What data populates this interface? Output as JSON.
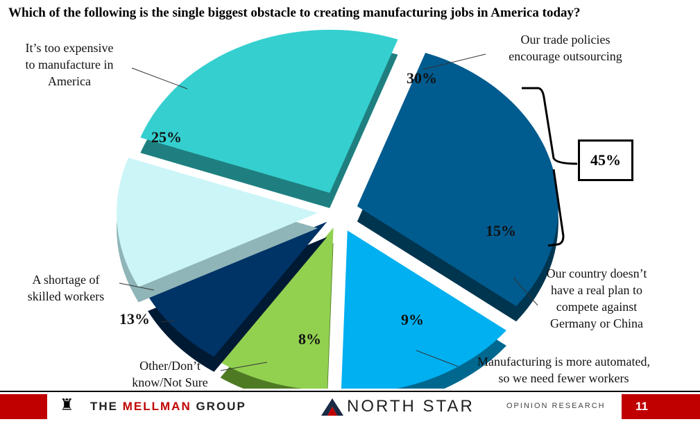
{
  "title": "Which of the following is the single biggest obstacle to creating manufacturing jobs in America today?",
  "chart_data": {
    "type": "pie",
    "title": "Which of the following is the single biggest obstacle to creating manufacturing jobs in America today?",
    "slices": [
      {
        "label": "Our trade policies encourage outsourcing",
        "value": 30,
        "value_label": "30%",
        "color": "#005b8f",
        "side": "#00354f"
      },
      {
        "label": "Our country doesn't have a real plan to compete against Germany or China",
        "value": 15,
        "value_label": "15%",
        "color": "#00b0f0",
        "side": "#00688f"
      },
      {
        "label": "Manufacturing is more automated, so we need fewer workers",
        "value": 9,
        "value_label": "9%",
        "color": "#92d050",
        "side": "#4f7a24"
      },
      {
        "label": "Other/Don't know/Not Sure",
        "value": 8,
        "value_label": "8%",
        "color": "#003366",
        "side": "#001a33"
      },
      {
        "label": "A shortage of skilled workers",
        "value": 13,
        "value_label": "13%",
        "color": "#ccf5f8",
        "side": "#8fb5b8"
      },
      {
        "label": "It's too expensive to manufacture in America",
        "value": 25,
        "value_label": "25%",
        "color": "#35cfcf",
        "side": "#1f7f80"
      }
    ],
    "bracket_total": "45%"
  },
  "labels": {
    "trade_1": "Our trade policies",
    "trade_2": "encourage outsourcing",
    "expensive_1": "It’s too expensive",
    "expensive_2": "to manufacture in",
    "expensive_3": "America",
    "shortage_1": "A shortage of",
    "shortage_2": "skilled workers",
    "other_1": "Other/Don’t",
    "other_2": "know/Not Sure",
    "automated_1": "Manufacturing is more automated,",
    "automated_2": "so we need fewer workers",
    "plan_1": "Our country doesn’t",
    "plan_2": "have a real plan to",
    "plan_3": "compete against",
    "plan_4": "Germany or China"
  },
  "footer": {
    "mellman_the": "THE",
    "mellman_name": "MELLMAN",
    "mellman_group": "GROUP",
    "northstar": "NORTH STAR",
    "northstar_sub": "OPINION RESEARCH",
    "page_number": "11"
  }
}
